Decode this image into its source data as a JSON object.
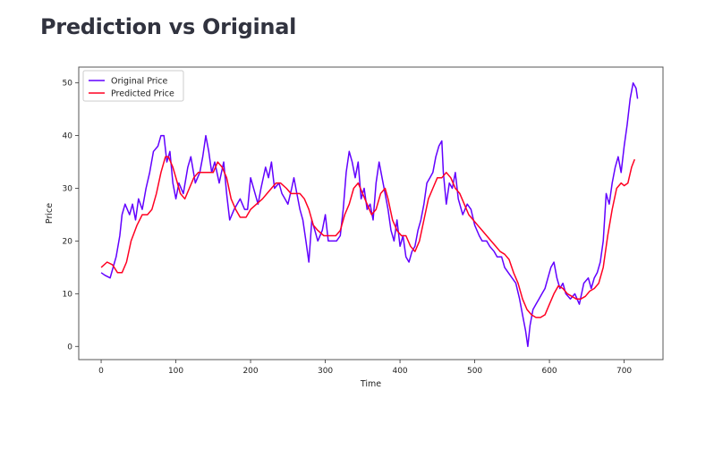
{
  "page": {
    "title": "Prediction vs Original"
  },
  "chart_data": {
    "type": "line",
    "title": "",
    "xlabel": "Time",
    "ylabel": "Price",
    "xlim": [
      -30,
      752
    ],
    "ylim": [
      -2.5,
      53
    ],
    "xticks": [
      0,
      100,
      200,
      300,
      400,
      500,
      600,
      700
    ],
    "yticks": [
      0,
      10,
      20,
      30,
      40,
      50
    ],
    "grid": false,
    "legend": "top-left",
    "colors": {
      "Original Price": "#6200ff",
      "Predicted Price": "#ff0022",
      "frame": "#555555"
    },
    "series": [
      {
        "name": "Original Price",
        "points": [
          [
            0,
            14
          ],
          [
            5,
            13.5
          ],
          [
            12,
            13
          ],
          [
            16,
            15
          ],
          [
            20,
            17
          ],
          [
            25,
            21
          ],
          [
            28,
            25
          ],
          [
            32,
            27
          ],
          [
            38,
            25
          ],
          [
            42,
            27
          ],
          [
            46,
            24
          ],
          [
            50,
            28
          ],
          [
            55,
            26
          ],
          [
            60,
            30
          ],
          [
            65,
            33
          ],
          [
            70,
            37
          ],
          [
            76,
            38
          ],
          [
            80,
            40
          ],
          [
            84,
            40
          ],
          [
            88,
            35
          ],
          [
            92,
            37
          ],
          [
            96,
            31
          ],
          [
            100,
            28
          ],
          [
            104,
            31
          ],
          [
            110,
            29
          ],
          [
            116,
            34
          ],
          [
            120,
            36
          ],
          [
            126,
            31
          ],
          [
            132,
            33
          ],
          [
            136,
            36
          ],
          [
            140,
            40
          ],
          [
            144,
            37
          ],
          [
            148,
            33
          ],
          [
            152,
            35
          ],
          [
            158,
            31
          ],
          [
            164,
            35
          ],
          [
            168,
            29
          ],
          [
            172,
            24
          ],
          [
            178,
            26
          ],
          [
            182,
            27
          ],
          [
            186,
            28
          ],
          [
            192,
            26
          ],
          [
            196,
            26
          ],
          [
            200,
            32
          ],
          [
            206,
            29
          ],
          [
            210,
            27
          ],
          [
            214,
            30
          ],
          [
            220,
            34
          ],
          [
            224,
            32
          ],
          [
            228,
            35
          ],
          [
            232,
            30
          ],
          [
            238,
            31
          ],
          [
            242,
            29
          ],
          [
            246,
            28
          ],
          [
            250,
            27
          ],
          [
            255,
            30
          ],
          [
            258,
            32
          ],
          [
            262,
            29
          ],
          [
            266,
            26
          ],
          [
            270,
            24
          ],
          [
            274,
            20
          ],
          [
            278,
            16
          ],
          [
            282,
            24
          ],
          [
            286,
            22
          ],
          [
            290,
            20
          ],
          [
            296,
            22
          ],
          [
            300,
            25
          ],
          [
            304,
            20
          ],
          [
            310,
            20
          ],
          [
            315,
            20
          ],
          [
            320,
            21
          ],
          [
            324,
            26
          ],
          [
            328,
            33
          ],
          [
            332,
            37
          ],
          [
            336,
            35
          ],
          [
            340,
            32
          ],
          [
            344,
            35
          ],
          [
            348,
            28
          ],
          [
            352,
            30
          ],
          [
            356,
            26
          ],
          [
            360,
            27
          ],
          [
            364,
            24
          ],
          [
            368,
            31
          ],
          [
            372,
            35
          ],
          [
            376,
            32
          ],
          [
            380,
            29
          ],
          [
            384,
            26
          ],
          [
            388,
            22
          ],
          [
            392,
            20
          ],
          [
            396,
            24
          ],
          [
            400,
            19
          ],
          [
            404,
            21
          ],
          [
            408,
            17
          ],
          [
            412,
            16
          ],
          [
            416,
            18
          ],
          [
            420,
            19
          ],
          [
            424,
            22
          ],
          [
            428,
            24
          ],
          [
            432,
            27
          ],
          [
            436,
            31
          ],
          [
            440,
            32
          ],
          [
            444,
            33
          ],
          [
            448,
            36
          ],
          [
            452,
            38
          ],
          [
            456,
            39
          ],
          [
            458,
            33
          ],
          [
            462,
            27
          ],
          [
            466,
            31
          ],
          [
            470,
            30
          ],
          [
            474,
            33
          ],
          [
            478,
            28
          ],
          [
            484,
            25
          ],
          [
            490,
            27
          ],
          [
            495,
            26
          ],
          [
            500,
            23
          ],
          [
            506,
            21
          ],
          [
            510,
            20
          ],
          [
            516,
            20
          ],
          [
            520,
            19
          ],
          [
            526,
            18
          ],
          [
            530,
            17
          ],
          [
            536,
            17
          ],
          [
            540,
            15
          ],
          [
            545,
            14
          ],
          [
            550,
            13
          ],
          [
            555,
            12
          ],
          [
            560,
            9
          ],
          [
            564,
            6
          ],
          [
            568,
            3
          ],
          [
            571,
            0
          ],
          [
            574,
            4
          ],
          [
            578,
            7
          ],
          [
            582,
            8
          ],
          [
            586,
            9
          ],
          [
            590,
            10
          ],
          [
            594,
            11
          ],
          [
            598,
            13
          ],
          [
            602,
            15
          ],
          [
            606,
            16
          ],
          [
            610,
            13
          ],
          [
            614,
            11
          ],
          [
            618,
            12
          ],
          [
            622,
            10
          ],
          [
            628,
            9
          ],
          [
            634,
            10
          ],
          [
            640,
            8
          ],
          [
            646,
            12
          ],
          [
            652,
            13
          ],
          [
            656,
            11
          ],
          [
            660,
            13
          ],
          [
            664,
            14
          ],
          [
            668,
            16
          ],
          [
            672,
            20
          ],
          [
            676,
            29
          ],
          [
            680,
            27
          ],
          [
            684,
            31
          ],
          [
            688,
            34
          ],
          [
            692,
            36
          ],
          [
            696,
            33
          ],
          [
            700,
            38
          ],
          [
            704,
            42
          ],
          [
            708,
            47
          ],
          [
            712,
            50
          ],
          [
            716,
            49
          ],
          [
            718,
            47
          ]
        ]
      },
      {
        "name": "Predicted Price",
        "points": [
          [
            0,
            15
          ],
          [
            8,
            16
          ],
          [
            15,
            15.5
          ],
          [
            22,
            14
          ],
          [
            28,
            14
          ],
          [
            34,
            16
          ],
          [
            40,
            20
          ],
          [
            48,
            23
          ],
          [
            55,
            25
          ],
          [
            62,
            25
          ],
          [
            68,
            26
          ],
          [
            74,
            29
          ],
          [
            80,
            33
          ],
          [
            86,
            36
          ],
          [
            90,
            36
          ],
          [
            96,
            34
          ],
          [
            100,
            32
          ],
          [
            106,
            29
          ],
          [
            112,
            28
          ],
          [
            118,
            30
          ],
          [
            124,
            32
          ],
          [
            130,
            33
          ],
          [
            138,
            33
          ],
          [
            144,
            33
          ],
          [
            150,
            33
          ],
          [
            156,
            35
          ],
          [
            162,
            34
          ],
          [
            168,
            32
          ],
          [
            174,
            28
          ],
          [
            180,
            26
          ],
          [
            186,
            24.5
          ],
          [
            194,
            24.5
          ],
          [
            200,
            26
          ],
          [
            208,
            27
          ],
          [
            216,
            28
          ],
          [
            222,
            29
          ],
          [
            228,
            30
          ],
          [
            234,
            31
          ],
          [
            240,
            31
          ],
          [
            248,
            30
          ],
          [
            254,
            29
          ],
          [
            260,
            29
          ],
          [
            266,
            29
          ],
          [
            272,
            28
          ],
          [
            278,
            26
          ],
          [
            284,
            23
          ],
          [
            290,
            22
          ],
          [
            298,
            21
          ],
          [
            306,
            21
          ],
          [
            314,
            21
          ],
          [
            320,
            22
          ],
          [
            326,
            25
          ],
          [
            332,
            27
          ],
          [
            338,
            30
          ],
          [
            344,
            31
          ],
          [
            350,
            29
          ],
          [
            356,
            27
          ],
          [
            362,
            25
          ],
          [
            368,
            26
          ],
          [
            374,
            29
          ],
          [
            380,
            30
          ],
          [
            384,
            28
          ],
          [
            390,
            24
          ],
          [
            396,
            22
          ],
          [
            402,
            21
          ],
          [
            408,
            21
          ],
          [
            414,
            19
          ],
          [
            420,
            18
          ],
          [
            426,
            20
          ],
          [
            432,
            24
          ],
          [
            438,
            28
          ],
          [
            444,
            30
          ],
          [
            450,
            32
          ],
          [
            456,
            32
          ],
          [
            462,
            33
          ],
          [
            468,
            32
          ],
          [
            474,
            30
          ],
          [
            480,
            29
          ],
          [
            486,
            27
          ],
          [
            492,
            25
          ],
          [
            498,
            24
          ],
          [
            504,
            23
          ],
          [
            510,
            22
          ],
          [
            516,
            21
          ],
          [
            522,
            20
          ],
          [
            528,
            19
          ],
          [
            534,
            18
          ],
          [
            540,
            17.5
          ],
          [
            546,
            16.5
          ],
          [
            552,
            14
          ],
          [
            558,
            12
          ],
          [
            564,
            9
          ],
          [
            570,
            7
          ],
          [
            576,
            6
          ],
          [
            582,
            5.5
          ],
          [
            588,
            5.5
          ],
          [
            594,
            6
          ],
          [
            600,
            8
          ],
          [
            606,
            10
          ],
          [
            612,
            11.5
          ],
          [
            618,
            11
          ],
          [
            624,
            10
          ],
          [
            630,
            9.5
          ],
          [
            636,
            9
          ],
          [
            642,
            9
          ],
          [
            648,
            9.5
          ],
          [
            654,
            10.5
          ],
          [
            660,
            11
          ],
          [
            666,
            12
          ],
          [
            672,
            15
          ],
          [
            678,
            21
          ],
          [
            684,
            26
          ],
          [
            690,
            30
          ],
          [
            696,
            31
          ],
          [
            700,
            30.5
          ],
          [
            705,
            31
          ],
          [
            710,
            34
          ],
          [
            714,
            35.5
          ]
        ]
      }
    ]
  }
}
